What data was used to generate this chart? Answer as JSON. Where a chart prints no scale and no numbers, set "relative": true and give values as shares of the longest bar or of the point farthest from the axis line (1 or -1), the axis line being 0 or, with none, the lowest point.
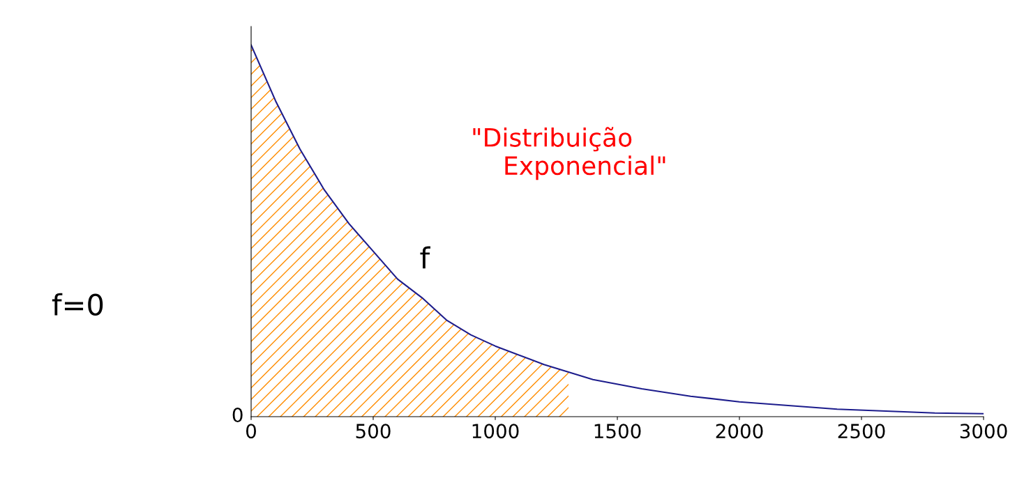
{
  "chart_data": {
    "type": "line",
    "relative": true,
    "xlim": [
      0,
      3000
    ],
    "xticks": [
      0,
      500,
      1000,
      1500,
      2000,
      2500,
      3000
    ],
    "series": [
      {
        "color": "#1c1c8c",
        "x": [
          0,
          100,
          200,
          300,
          400,
          500,
          600,
          700,
          800,
          900,
          1000,
          1200,
          1400,
          1600,
          1800,
          2000,
          2200,
          2400,
          2600,
          2800,
          3000
        ],
        "values": [
          1.0,
          0.85,
          0.72,
          0.61,
          0.52,
          0.445,
          0.37,
          0.32,
          0.26,
          0.22,
          0.19,
          0.14,
          0.1,
          0.075,
          0.055,
          0.04,
          0.03,
          0.02,
          0.015,
          0.01,
          0.008
        ]
      },
      {
        "type": "area",
        "color": "#ff8c00",
        "x": [
          0,
          100,
          200,
          300,
          400,
          500,
          600,
          700,
          800,
          900,
          1000,
          1200,
          1300
        ],
        "values": [
          1.0,
          0.85,
          0.72,
          0.61,
          0.52,
          0.445,
          0.37,
          0.32,
          0.26,
          0.22,
          0.19,
          0.14,
          0.12
        ]
      }
    ],
    "annotations": [
      "\"Distribuição Exponencial\"",
      "f",
      "f=0",
      "0"
    ]
  }
}
